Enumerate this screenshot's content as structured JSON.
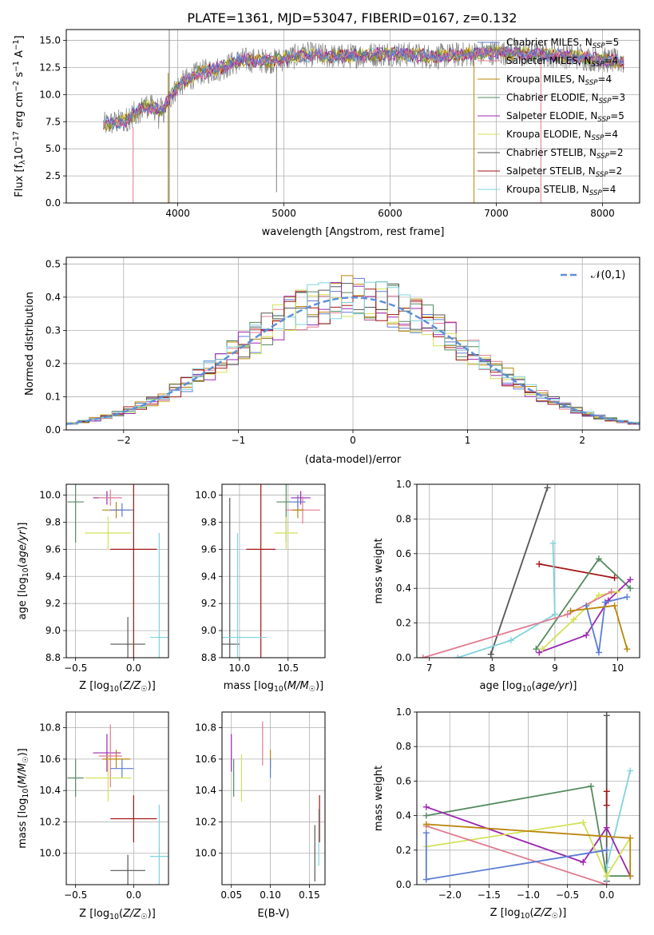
{
  "figure_title": "PLATE=1361, MJD=53047, FIBERID=0167, z=0.132",
  "series_colors": [
    "#b8860b",
    "#558b5f",
    "#9c27b0",
    "#d4e157",
    "#555555",
    "#a31515",
    "#7fd3dc"
  ],
  "chart_data": [
    {
      "id": "spectrum",
      "type": "line",
      "xlabel": "wavelength [Angstrom, rest frame]",
      "ylabel": "Flux [f_λ 10^-17 erg cm^-2 s^-1 A^-1]",
      "xlim": [
        2950,
        8350
      ],
      "ylim": [
        0,
        16
      ],
      "xticks": [
        4000,
        5000,
        6000,
        7000,
        8000
      ],
      "yticks": [
        0.0,
        2.5,
        5.0,
        7.5,
        10.0,
        12.5,
        15.0
      ],
      "legend_position": "upper right",
      "legend": [
        {
          "label": "Chabrier MILES, N_SSP=5",
          "color": "#5b7bd5"
        },
        {
          "label": "Salpeter MILES, N_SSP=4",
          "color": "#e07b91"
        },
        {
          "label": "Kroupa MILES, N_SSP=4",
          "color": "#b8860b"
        },
        {
          "label": "Chabrier ELODIE, N_SSP=3",
          "color": "#558b5f"
        },
        {
          "label": "Salpeter ELODIE, N_SSP=5",
          "color": "#9c27b0"
        },
        {
          "label": "Kroupa ELODIE, N_SSP=4",
          "color": "#d4e157"
        },
        {
          "label": "Chabrier STELIB, N_SSP=2",
          "color": "#555555"
        },
        {
          "label": "Salpeter STELIB, N_SSP=2",
          "color": "#a31515"
        },
        {
          "label": "Kroupa STELIB, N_SSP=4",
          "color": "#7fd3dc"
        }
      ],
      "spectrum_continuum": [
        [
          3300,
          7.2
        ],
        [
          3500,
          7.6
        ],
        [
          3700,
          9.0
        ],
        [
          3850,
          8.5
        ],
        [
          4000,
          10.8
        ],
        [
          4200,
          12.0
        ],
        [
          4400,
          12.4
        ],
        [
          4600,
          13.2
        ],
        [
          4900,
          13.1
        ],
        [
          5200,
          13.7
        ],
        [
          5500,
          13.5
        ],
        [
          6000,
          13.8
        ],
        [
          6400,
          13.5
        ],
        [
          7000,
          13.9
        ],
        [
          7600,
          13.6
        ],
        [
          8000,
          13.2
        ],
        [
          8200,
          13.0
        ]
      ]
    },
    {
      "id": "residuals",
      "type": "line",
      "xlabel": "(data-model)/error",
      "ylabel": "Normed distribution",
      "xlim": [
        -2.5,
        2.5
      ],
      "ylim": [
        0,
        0.52
      ],
      "xticks": [
        -2,
        -1,
        0,
        1,
        2
      ],
      "yticks": [
        0.0,
        0.1,
        0.2,
        0.3,
        0.4,
        0.5
      ],
      "legend": [
        {
          "label": "𝒩(0,1)",
          "color": "#5b8fd9"
        }
      ],
      "legend_position": "upper right"
    },
    {
      "id": "age_vs_Z",
      "type": "scatter",
      "xlabel": "Z [log10(Z/Z☉)]",
      "ylabel": "age  [log10(age/yr)]",
      "xlim": [
        -0.58,
        0.3
      ],
      "ylim": [
        8.8,
        10.08
      ],
      "xticks": [
        -0.5,
        0.0
      ],
      "yticks": [
        8.8,
        9.0,
        9.2,
        9.4,
        9.6,
        9.8,
        10.0
      ],
      "points": [
        {
          "color": "#558b5f",
          "x": -0.5,
          "y": 9.95,
          "xerr": 0.07,
          "yerr": 0.3
        },
        {
          "color": "#9c27b0",
          "x": -0.23,
          "y": 9.98,
          "xerr": 0.12,
          "yerr": 0.05
        },
        {
          "color": "#e07b91",
          "x": -0.2,
          "y": 9.98,
          "xerr": 0.1,
          "yerr": 0.06
        },
        {
          "color": "#b8860b",
          "x": -0.15,
          "y": 9.89,
          "xerr": 0.12,
          "yerr": 0.06
        },
        {
          "color": "#5b7bd5",
          "x": -0.1,
          "y": 9.89,
          "xerr": 0.1,
          "yerr": 0.05
        },
        {
          "color": "#d4e157",
          "x": -0.22,
          "y": 9.72,
          "xerr": 0.2,
          "yerr": 0.12
        },
        {
          "color": "#a31515",
          "x": 0.0,
          "y": 9.6,
          "xerr": 0.2,
          "yerr": 0.8
        },
        {
          "color": "#555555",
          "x": -0.05,
          "y": 8.9,
          "xerr": 0.15,
          "yerr": 0.2
        },
        {
          "color": "#7fd3dc",
          "x": 0.22,
          "y": 8.95,
          "xerr": 0.08,
          "yerr": 0.77
        }
      ]
    },
    {
      "id": "age_vs_mass",
      "type": "scatter",
      "xlabel": "mass [log10(M/M☉)]",
      "ylabel": "",
      "xlim": [
        9.82,
        10.88
      ],
      "ylim": [
        8.8,
        10.08
      ],
      "xticks": [
        10.0,
        10.5
      ],
      "yticks": [
        8.8,
        9.0,
        9.2,
        9.4,
        9.6,
        9.8,
        10.0
      ],
      "points": [
        {
          "color": "#558b5f",
          "x": 10.48,
          "y": 9.95,
          "xerr": 0.1,
          "yerr": 0.3
        },
        {
          "color": "#9c27b0",
          "x": 10.63,
          "y": 9.98,
          "xerr": 0.1,
          "yerr": 0.05
        },
        {
          "color": "#e07b91",
          "x": 10.65,
          "y": 9.89,
          "xerr": 0.18,
          "yerr": 0.1
        },
        {
          "color": "#b8860b",
          "x": 10.6,
          "y": 9.89,
          "xerr": 0.06,
          "yerr": 0.06
        },
        {
          "color": "#5b7bd5",
          "x": 10.6,
          "y": 9.95,
          "xerr": 0.08,
          "yerr": 0.05
        },
        {
          "color": "#d4e157",
          "x": 10.48,
          "y": 9.72,
          "xerr": 0.12,
          "yerr": 0.12
        },
        {
          "color": "#a31515",
          "x": 10.22,
          "y": 9.6,
          "xerr": 0.15,
          "yerr": 0.8
        },
        {
          "color": "#555555",
          "x": 9.9,
          "y": 8.9,
          "xerr": 0.1,
          "yerr": 1.08
        },
        {
          "color": "#7fd3dc",
          "x": 9.98,
          "y": 8.95,
          "xerr": 0.3,
          "yerr": 0.77
        }
      ]
    },
    {
      "id": "weight_vs_age",
      "type": "line",
      "xlabel": "age  [log10(age/yr)]",
      "ylabel": "mass weight",
      "xlim": [
        6.8,
        10.35
      ],
      "ylim": [
        0.0,
        1.0
      ],
      "xticks": [
        7,
        8,
        9,
        10
      ],
      "yticks": [
        0.0,
        0.2,
        0.4,
        0.6,
        0.8,
        1.0
      ],
      "series": [
        {
          "color": "#555555",
          "x": [
            7.98,
            8.88
          ],
          "y": [
            0.02,
            0.98
          ]
        },
        {
          "color": "#a31515",
          "x": [
            8.75,
            9.95
          ],
          "y": [
            0.54,
            0.46
          ]
        },
        {
          "color": "#7fd3dc",
          "x": [
            7.45,
            8.3,
            9.0,
            8.97
          ],
          "y": [
            0.0,
            0.1,
            0.25,
            0.66
          ]
        },
        {
          "color": "#558b5f",
          "x": [
            8.7,
            9.7,
            10.2
          ],
          "y": [
            0.05,
            0.57,
            0.4
          ]
        },
        {
          "color": "#9c27b0",
          "x": [
            8.75,
            9.5,
            9.85,
            10.2
          ],
          "y": [
            0.03,
            0.13,
            0.33,
            0.45
          ]
        },
        {
          "color": "#d4e157",
          "x": [
            8.8,
            9.3,
            9.7,
            10.0
          ],
          "y": [
            0.05,
            0.22,
            0.36,
            0.38
          ]
        },
        {
          "color": "#e07b91",
          "x": [
            6.9,
            9.2,
            9.9
          ],
          "y": [
            0.0,
            0.25,
            0.38
          ]
        },
        {
          "color": "#5b7bd5",
          "x": [
            9.5,
            9.7,
            9.8,
            10.15
          ],
          "y": [
            0.3,
            0.03,
            0.32,
            0.35
          ]
        },
        {
          "color": "#b8860b",
          "x": [
            9.25,
            9.95,
            10.15
          ],
          "y": [
            0.27,
            0.3,
            0.05
          ]
        }
      ]
    },
    {
      "id": "mass_vs_Z",
      "type": "scatter",
      "xlabel": "Z [log10(Z/Z☉)]",
      "ylabel": "mass [log10(M/M☉)]",
      "xlim": [
        -0.58,
        0.3
      ],
      "ylim": [
        9.8,
        10.9
      ],
      "xticks": [
        -0.5,
        0.0
      ],
      "yticks": [
        10.0,
        10.2,
        10.4,
        10.6,
        10.8
      ],
      "points": [
        {
          "color": "#558b5f",
          "x": -0.5,
          "y": 10.48,
          "xerr": 0.07,
          "yerr": 0.12
        },
        {
          "color": "#9c27b0",
          "x": -0.23,
          "y": 10.64,
          "xerr": 0.12,
          "yerr": 0.12
        },
        {
          "color": "#e07b91",
          "x": -0.2,
          "y": 10.62,
          "xerr": 0.1,
          "yerr": 0.2
        },
        {
          "color": "#b8860b",
          "x": -0.15,
          "y": 10.6,
          "xerr": 0.12,
          "yerr": 0.06
        },
        {
          "color": "#5b7bd5",
          "x": -0.1,
          "y": 10.54,
          "xerr": 0.1,
          "yerr": 0.06
        },
        {
          "color": "#d4e157",
          "x": -0.22,
          "y": 10.48,
          "xerr": 0.2,
          "yerr": 0.15
        },
        {
          "color": "#a31515",
          "x": 0.0,
          "y": 10.22,
          "xerr": 0.2,
          "yerr": 0.15
        },
        {
          "color": "#555555",
          "x": -0.05,
          "y": 9.89,
          "xerr": 0.15,
          "yerr": 0.1
        },
        {
          "color": "#7fd3dc",
          "x": 0.22,
          "y": 9.98,
          "xerr": 0.08,
          "yerr": 0.33
        }
      ]
    },
    {
      "id": "mass_vs_ebv",
      "type": "scatter",
      "xlabel": "E(B-V)",
      "ylabel": "",
      "xlim": [
        0.038,
        0.17
      ],
      "ylim": [
        9.8,
        10.9
      ],
      "xticks": [
        0.05,
        0.1,
        0.15
      ],
      "yticks": [
        10.0,
        10.2,
        10.4,
        10.6,
        10.8
      ],
      "points": [
        {
          "color": "#9c27b0",
          "x": 0.05,
          "y": 10.64,
          "yerr": 0.12
        },
        {
          "color": "#558b5f",
          "x": 0.053,
          "y": 10.48,
          "yerr": 0.12
        },
        {
          "color": "#d4e157",
          "x": 0.063,
          "y": 10.48,
          "yerr": 0.15
        },
        {
          "color": "#e07b91",
          "x": 0.09,
          "y": 10.7,
          "yerr": 0.14
        },
        {
          "color": "#b8860b",
          "x": 0.1,
          "y": 10.6,
          "yerr": 0.06
        },
        {
          "color": "#5b7bd5",
          "x": 0.1,
          "y": 10.54,
          "yerr": 0.06
        },
        {
          "color": "#555555",
          "x": 0.157,
          "y": 10.0,
          "yerr": 0.18
        },
        {
          "color": "#7fd3dc",
          "x": 0.162,
          "y": 10.1,
          "yerr": 0.18
        },
        {
          "color": "#a31515",
          "x": 0.163,
          "y": 10.22,
          "yerr": 0.15
        }
      ]
    },
    {
      "id": "weight_vs_Z",
      "type": "line",
      "xlabel": "Z [log10(Z/Z☉)]",
      "ylabel": "mass weight",
      "xlim": [
        -2.42,
        0.42
      ],
      "ylim": [
        0.0,
        1.0
      ],
      "xticks": [
        -2.0,
        -1.5,
        -1.0,
        -0.5,
        0.0
      ],
      "yticks": [
        0.0,
        0.2,
        0.4,
        0.6,
        0.8,
        1.0
      ],
      "series": [
        {
          "color": "#555555",
          "x": [
            0.0,
            0.0
          ],
          "y": [
            0.02,
            0.98
          ]
        },
        {
          "color": "#a31515",
          "x": [
            0.0,
            0.0
          ],
          "y": [
            0.46,
            0.54
          ]
        },
        {
          "color": "#7fd3dc",
          "x": [
            0.0,
            0.0,
            0.3
          ],
          "y": [
            0.0,
            0.1,
            0.66
          ]
        },
        {
          "color": "#558b5f",
          "x": [
            -2.3,
            -0.2,
            0.0,
            0.3
          ],
          "y": [
            0.4,
            0.57,
            0.05,
            0.05
          ]
        },
        {
          "color": "#9c27b0",
          "x": [
            -2.3,
            -0.3,
            0.0,
            0.3
          ],
          "y": [
            0.45,
            0.13,
            0.33,
            0.05
          ]
        },
        {
          "color": "#d4e157",
          "x": [
            -2.3,
            -0.3,
            0.0,
            0.3
          ],
          "y": [
            0.22,
            0.36,
            0.05,
            0.27
          ]
        },
        {
          "color": "#e07b91",
          "x": [
            -2.3,
            0.0
          ],
          "y": [
            0.34,
            0.0
          ]
        },
        {
          "color": "#5b7bd5",
          "x": [
            -2.3,
            -2.3,
            0.0
          ],
          "y": [
            0.3,
            0.03,
            0.2
          ]
        },
        {
          "color": "#b8860b",
          "x": [
            -2.3,
            0.3,
            0.3
          ],
          "y": [
            0.35,
            0.27,
            0.05
          ]
        }
      ]
    }
  ]
}
